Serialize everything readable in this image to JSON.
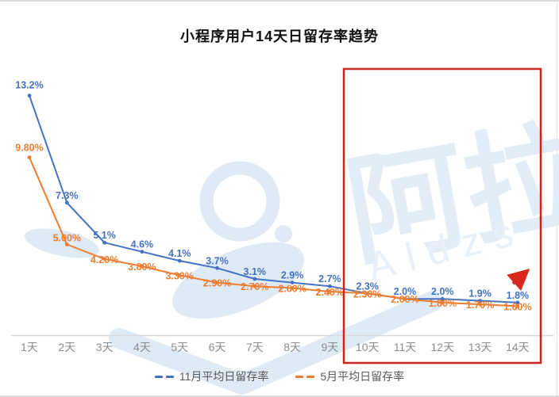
{
  "title": "小程序用户14天日留存率趋势",
  "watermark": {
    "text_cn": "阿拉",
    "text_en": "Aldzs",
    "color": "#dfeaf7"
  },
  "chart_data": {
    "type": "line",
    "title": "小程序用户14天日留存率趋势",
    "categories": [
      "1天",
      "2天",
      "3天",
      "4天",
      "5天",
      "6天",
      "7天",
      "8天",
      "9天",
      "10天",
      "11天",
      "12天",
      "13天",
      "14天"
    ],
    "series": [
      {
        "name": "11月平均日留存率",
        "color": "#4472c4",
        "values": [
          13.2,
          7.3,
          5.1,
          4.6,
          4.1,
          3.7,
          3.1,
          2.9,
          2.7,
          2.3,
          2.0,
          2.0,
          1.9,
          1.8
        ],
        "labels": [
          "13.2%",
          "7.3%",
          "5.1%",
          "4.6%",
          "4.1%",
          "3.7%",
          "3.1%",
          "2.9%",
          "2.7%",
          "2.3%",
          "2.0%",
          "2.0%",
          "1.9%",
          "1.8%"
        ]
      },
      {
        "name": "5月平均日留存率",
        "color": "#ed7d31",
        "values": [
          9.8,
          5.0,
          4.2,
          3.8,
          3.3,
          2.9,
          2.7,
          2.6,
          2.4,
          2.3,
          2.0,
          1.8,
          1.7,
          1.6
        ],
        "labels": [
          "9.80%",
          "5.00%",
          "4.20%",
          "3.80%",
          "3.30%",
          "2.90%",
          "2.70%",
          "2.60%",
          "2.40%",
          "2.30%",
          "2.00%",
          "1.80%",
          "1.70%",
          "1.60%"
        ]
      }
    ],
    "xlabel": "",
    "ylabel": "",
    "ylim": [
      0,
      14
    ],
    "grid": false,
    "legend_position": "bottom",
    "annotations": {
      "highlight_box": {
        "from_category": "10天",
        "to_category": "14天",
        "color": "#c9251d"
      },
      "arrow": {
        "description": "red arrow pointing up-right near 14天",
        "color": "#d8281e"
      }
    }
  }
}
